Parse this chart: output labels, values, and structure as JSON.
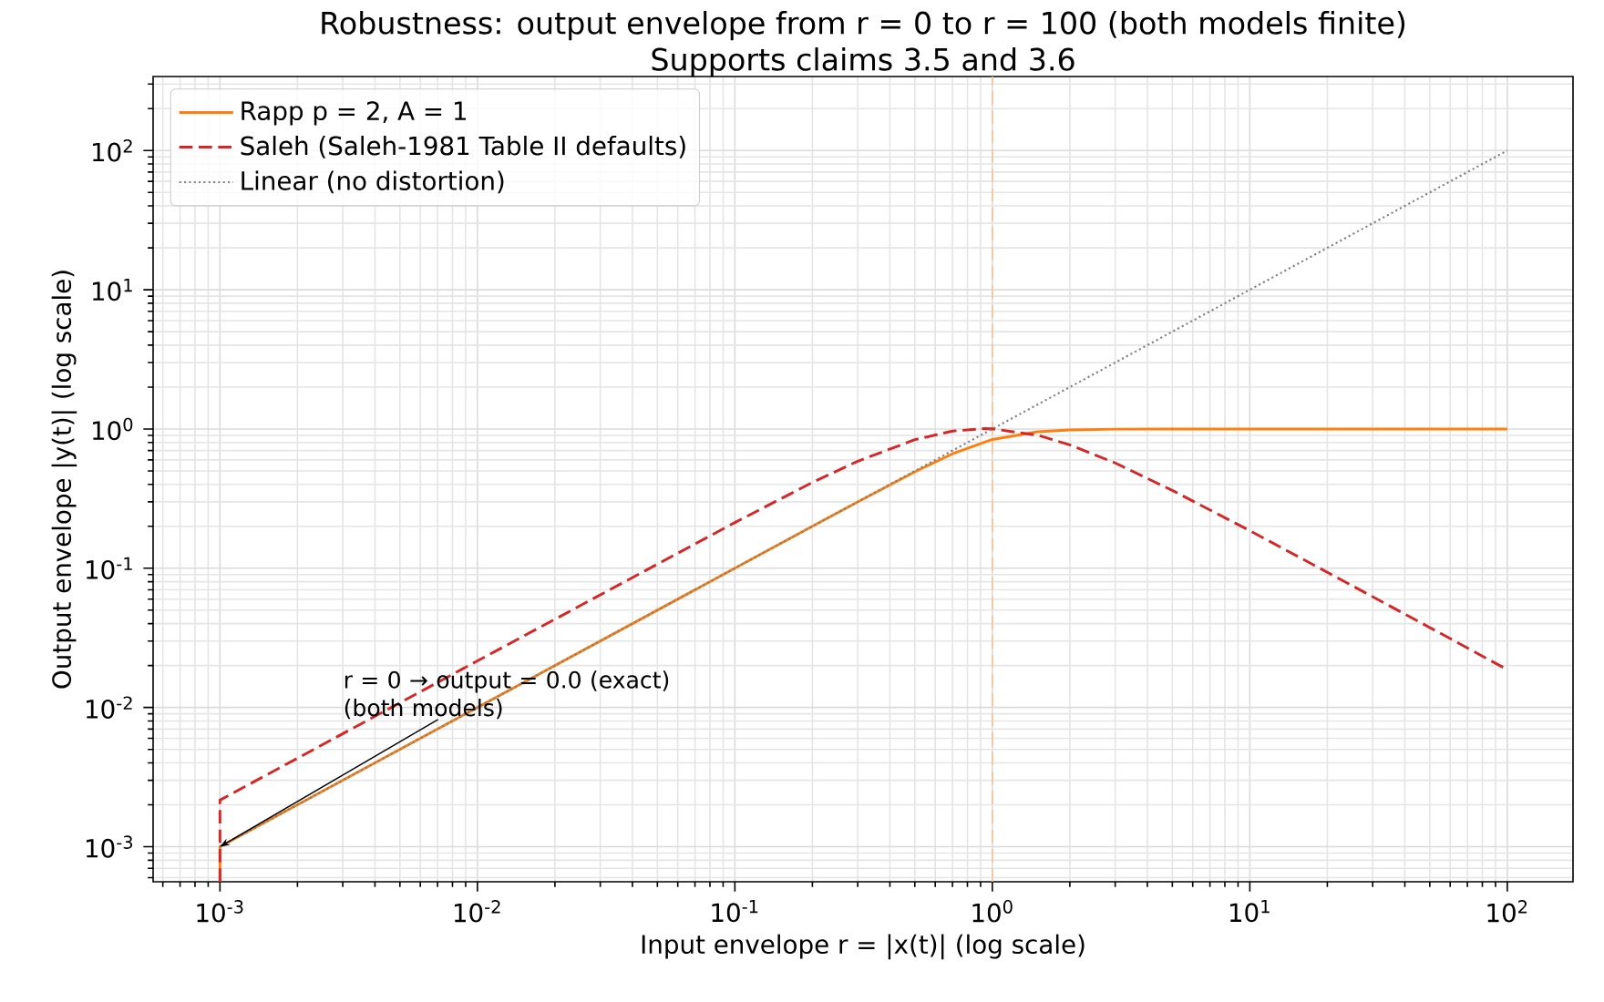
{
  "chart_data": {
    "type": "line",
    "title": "Robustness: output envelope from r = 0 to r = 100 (both models finite)",
    "subtitle": "Supports claims 3.5 and 3.6",
    "xlabel": "Input envelope r = |x(t)| (log scale)",
    "ylabel": "Output envelope |y(t)| (log scale)",
    "log": "xy",
    "grid": true,
    "legend": "top left",
    "xlim": [
      0.00055,
      180
    ],
    "ylim": [
      0.00056,
      340
    ],
    "xticks": [
      {
        "value": 0.001,
        "label": "10$^{-3}$"
      },
      {
        "value": 0.01,
        "label": "10$^{-2}$"
      },
      {
        "value": 0.1,
        "label": "10$^{-1}$"
      },
      {
        "value": 1,
        "label": "10$^{0}$"
      },
      {
        "value": 10,
        "label": "10$^{1}$"
      },
      {
        "value": 100,
        "label": "10$^{2}$"
      }
    ],
    "yticks": [
      {
        "value": 0.001,
        "label": "10$^{-3}$"
      },
      {
        "value": 0.01,
        "label": "10$^{-2}$"
      },
      {
        "value": 0.1,
        "label": "10$^{-1}$"
      },
      {
        "value": 1,
        "label": "10$^{0}$"
      },
      {
        "value": 10,
        "label": "10$^{1}$"
      },
      {
        "value": 100,
        "label": "10$^{2}$"
      }
    ],
    "series": [
      {
        "name": "Rapp p = 2, A = 1",
        "color": "#ff7f0e",
        "line_style": "solid",
        "x": [
          0.001,
          0.001,
          0.01,
          0.1,
          0.2,
          0.3,
          0.5,
          0.7,
          1,
          1.5,
          2,
          3,
          5,
          10,
          100
        ],
        "values": [
          0.00056,
          0.001,
          0.01,
          0.1,
          0.2,
          0.2994,
          0.4925,
          0.6633,
          0.8409,
          0.9559,
          0.985,
          0.997,
          1.0,
          1.0,
          1.0
        ]
      },
      {
        "name": "Saleh (Saleh-1981 Table II defaults)",
        "color": "#d62728",
        "line_style": "dashed",
        "x": [
          0.001,
          0.001,
          0.01,
          0.1,
          0.2,
          0.3,
          0.5,
          0.7,
          0.93,
          1,
          1.5,
          2,
          3,
          5,
          10,
          20,
          50,
          100
        ],
        "values": [
          0.00056,
          0.00216,
          0.0216,
          0.213,
          0.413,
          0.587,
          0.838,
          0.966,
          1.006,
          1.003,
          0.902,
          0.77,
          0.57,
          0.362,
          0.186,
          0.0935,
          0.0375,
          0.0187
        ]
      },
      {
        "name": "Linear (no distortion)",
        "color": "#808080",
        "line_style": "dotted",
        "x": [
          0.001,
          100
        ],
        "values": [
          0.001,
          100
        ]
      }
    ],
    "ref_lines": [
      {
        "axis": "x",
        "value": 1,
        "color": "#f8c49a",
        "line_style": "dashed"
      }
    ],
    "annotations": [
      {
        "text": "r = 0 → output = 0.0 (exact) (both models)",
        "x": 0.001,
        "y": 0.001
      }
    ]
  }
}
